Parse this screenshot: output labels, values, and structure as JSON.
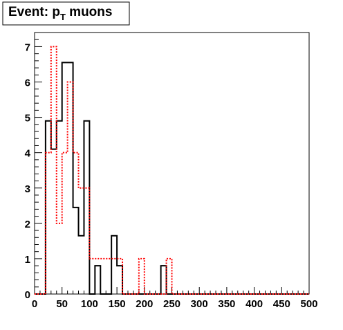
{
  "title_box": {
    "title_text": "Event: p",
    "subscript": "T",
    "title_suffix": " muons"
  },
  "chart_data": {
    "type": "histogram",
    "title": "Event: p_T muons",
    "xlabel": "",
    "ylabel": "",
    "xlim": [
      0,
      500
    ],
    "ylim": [
      0,
      7.4
    ],
    "x_ticks": [
      0,
      50,
      100,
      150,
      200,
      250,
      300,
      350,
      400,
      450,
      500
    ],
    "y_ticks": [
      0,
      1,
      2,
      3,
      4,
      5,
      6,
      7
    ],
    "bin_edges": [
      0,
      10,
      20,
      30,
      40,
      50,
      60,
      70,
      80,
      90,
      100,
      110,
      120,
      130,
      140,
      150,
      160,
      170,
      180,
      190,
      200,
      210,
      220,
      230,
      240,
      250,
      260,
      270,
      280,
      290,
      300,
      310,
      320,
      330,
      340,
      350,
      360,
      370,
      380,
      390,
      400,
      410,
      420,
      430,
      440,
      450,
      460,
      470,
      480,
      490,
      500
    ],
    "series": [
      {
        "style": "solid",
        "color": "#000000",
        "values": [
          0,
          0,
          4.9,
          4.1,
          4.9,
          6.55,
          6.55,
          2.45,
          1.65,
          4.9,
          0,
          0.8,
          0,
          0,
          1.65,
          0.8,
          0,
          0,
          0,
          0,
          0,
          0,
          0,
          0.8,
          0,
          0,
          0,
          0,
          0,
          0,
          0,
          0,
          0,
          0,
          0,
          0,
          0,
          0,
          0,
          0,
          0,
          0,
          0,
          0,
          0,
          0,
          0,
          0,
          0,
          0
        ]
      },
      {
        "style": "dotted",
        "color": "#ff0000",
        "values": [
          0,
          0,
          4.0,
          7.0,
          2.0,
          4.0,
          6.0,
          4.0,
          3.0,
          3.0,
          1.0,
          1.0,
          1.0,
          1.0,
          1.0,
          1.0,
          0,
          0,
          0,
          1.0,
          0,
          0,
          0,
          0,
          1.0,
          0,
          0,
          0,
          0,
          0,
          0,
          0,
          0,
          0,
          0,
          0,
          0,
          0,
          0,
          0,
          0,
          0,
          0,
          0,
          0,
          0,
          0,
          0,
          0,
          0
        ]
      }
    ],
    "grid": false,
    "legend": "none"
  }
}
